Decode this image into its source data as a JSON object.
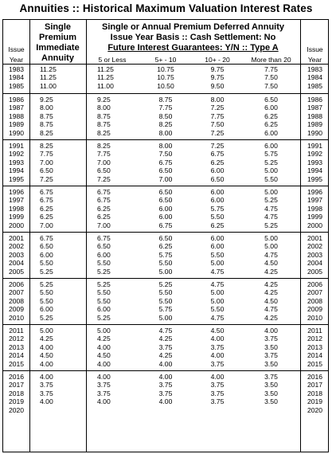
{
  "title": "Annuities  ::  Historical Maximum Valuation Interest Rates",
  "header": {
    "issue_line1": "Issue",
    "issue_line2": "Year",
    "single_premium_line1": "Single",
    "single_premium_line2": "Premium",
    "single_premium_line3": "Immediate",
    "single_premium_line4": "Annuity",
    "deferred_line1": "Single or Annual Premium Deferred Annuity",
    "deferred_line2": "Issue Year Basis  ::  Cash Settlement:  No",
    "deferred_line3": "Future Interest Guarantees:  Y/N  ::  Type A",
    "duration_1": "5 or Less",
    "duration_2": "5+  -  10",
    "duration_3": "10+  -  20",
    "duration_4": "More than 20",
    "issue_right_line1": "Issue",
    "issue_right_line2": "Year"
  },
  "groups": [
    {
      "rows": [
        {
          "year": "1983",
          "imm": "11.25",
          "d1": "11.25",
          "d2": "10.75",
          "d3": "9.75",
          "d4": "7.75"
        },
        {
          "year": "1984",
          "imm": "11.25",
          "d1": "11.25",
          "d2": "10.75",
          "d3": "9.75",
          "d4": "7.50"
        },
        {
          "year": "1985",
          "imm": "11.00",
          "d1": "11.00",
          "d2": "10.50",
          "d3": "9.50",
          "d4": "7.50"
        }
      ]
    },
    {
      "rows": [
        {
          "year": "1986",
          "imm": "9.25",
          "d1": "9.25",
          "d2": "8.75",
          "d3": "8.00",
          "d4": "6.50"
        },
        {
          "year": "1987",
          "imm": "8.00",
          "d1": "8.00",
          "d2": "7.75",
          "d3": "7.25",
          "d4": "6.00"
        },
        {
          "year": "1988",
          "imm": "8.75",
          "d1": "8.75",
          "d2": "8.50",
          "d3": "7.75",
          "d4": "6.25"
        },
        {
          "year": "1989",
          "imm": "8.75",
          "d1": "8.75",
          "d2": "8.25",
          "d3": "7.50",
          "d4": "6.25"
        },
        {
          "year": "1990",
          "imm": "8.25",
          "d1": "8.25",
          "d2": "8.00",
          "d3": "7.25",
          "d4": "6.00"
        }
      ]
    },
    {
      "rows": [
        {
          "year": "1991",
          "imm": "8.25",
          "d1": "8.25",
          "d2": "8.00",
          "d3": "7.25",
          "d4": "6.00"
        },
        {
          "year": "1992",
          "imm": "7.75",
          "d1": "7.75",
          "d2": "7.50",
          "d3": "6.75",
          "d4": "5.75"
        },
        {
          "year": "1993",
          "imm": "7.00",
          "d1": "7.00",
          "d2": "6.75",
          "d3": "6.25",
          "d4": "5.25"
        },
        {
          "year": "1994",
          "imm": "6.50",
          "d1": "6.50",
          "d2": "6.50",
          "d3": "6.00",
          "d4": "5.00"
        },
        {
          "year": "1995",
          "imm": "7.25",
          "d1": "7.25",
          "d2": "7.00",
          "d3": "6.50",
          "d4": "5.50"
        }
      ]
    },
    {
      "rows": [
        {
          "year": "1996",
          "imm": "6.75",
          "d1": "6.75",
          "d2": "6.50",
          "d3": "6.00",
          "d4": "5.00"
        },
        {
          "year": "1997",
          "imm": "6.75",
          "d1": "6.75",
          "d2": "6.50",
          "d3": "6.00",
          "d4": "5.25"
        },
        {
          "year": "1998",
          "imm": "6.25",
          "d1": "6.25",
          "d2": "6.00",
          "d3": "5.75",
          "d4": "4.75"
        },
        {
          "year": "1999",
          "imm": "6.25",
          "d1": "6.25",
          "d2": "6.00",
          "d3": "5.50",
          "d4": "4.75"
        },
        {
          "year": "2000",
          "imm": "7.00",
          "d1": "7.00",
          "d2": "6.75",
          "d3": "6.25",
          "d4": "5.25"
        }
      ]
    },
    {
      "rows": [
        {
          "year": "2001",
          "imm": "6.75",
          "d1": "6.75",
          "d2": "6.50",
          "d3": "6.00",
          "d4": "5.00"
        },
        {
          "year": "2002",
          "imm": "6.50",
          "d1": "6.50",
          "d2": "6.25",
          "d3": "6.00",
          "d4": "5.00"
        },
        {
          "year": "2003",
          "imm": "6.00",
          "d1": "6.00",
          "d2": "5.75",
          "d3": "5.50",
          "d4": "4.75"
        },
        {
          "year": "2004",
          "imm": "5.50",
          "d1": "5.50",
          "d2": "5.50",
          "d3": "5.00",
          "d4": "4.50"
        },
        {
          "year": "2005",
          "imm": "5.25",
          "d1": "5.25",
          "d2": "5.00",
          "d3": "4.75",
          "d4": "4.25"
        }
      ]
    },
    {
      "rows": [
        {
          "year": "2006",
          "imm": "5.25",
          "d1": "5.25",
          "d2": "5.25",
          "d3": "4.75",
          "d4": "4.25"
        },
        {
          "year": "2007",
          "imm": "5.50",
          "d1": "5.50",
          "d2": "5.50",
          "d3": "5.00",
          "d4": "4.25"
        },
        {
          "year": "2008",
          "imm": "5.50",
          "d1": "5.50",
          "d2": "5.50",
          "d3": "5.00",
          "d4": "4.50"
        },
        {
          "year": "2009",
          "imm": "6.00",
          "d1": "6.00",
          "d2": "5.75",
          "d3": "5.50",
          "d4": "4.75"
        },
        {
          "year": "2010",
          "imm": "5.25",
          "d1": "5.25",
          "d2": "5.00",
          "d3": "4.75",
          "d4": "4.25"
        }
      ]
    },
    {
      "rows": [
        {
          "year": "2011",
          "imm": "5.00",
          "d1": "5.00",
          "d2": "4.75",
          "d3": "4.50",
          "d4": "4.00"
        },
        {
          "year": "2012",
          "imm": "4.25",
          "d1": "4.25",
          "d2": "4.25",
          "d3": "4.00",
          "d4": "3.75"
        },
        {
          "year": "2013",
          "imm": "4.00",
          "d1": "4.00",
          "d2": "3.75",
          "d3": "3.75",
          "d4": "3.50"
        },
        {
          "year": "2014",
          "imm": "4.50",
          "d1": "4.50",
          "d2": "4.25",
          "d3": "4.00",
          "d4": "3.75"
        },
        {
          "year": "2015",
          "imm": "4.00",
          "d1": "4.00",
          "d2": "4.00",
          "d3": "3.75",
          "d4": "3.50"
        }
      ]
    },
    {
      "rows": [
        {
          "year": "2016",
          "imm": "4.00",
          "d1": "4.00",
          "d2": "4.00",
          "d3": "4.00",
          "d4": "3.75"
        },
        {
          "year": "2017",
          "imm": "3.75",
          "d1": "3.75",
          "d2": "3.75",
          "d3": "3.75",
          "d4": "3.50"
        },
        {
          "year": "2018",
          "imm": "3.75",
          "d1": "3.75",
          "d2": "3.75",
          "d3": "3.75",
          "d4": "3.50"
        },
        {
          "year": "2019",
          "imm": "4.00",
          "d1": "4.00",
          "d2": "4.00",
          "d3": "3.75",
          "d4": "3.50"
        },
        {
          "year": "2020",
          "imm": "",
          "d1": "",
          "d2": "",
          "d3": "",
          "d4": ""
        }
      ]
    }
  ]
}
